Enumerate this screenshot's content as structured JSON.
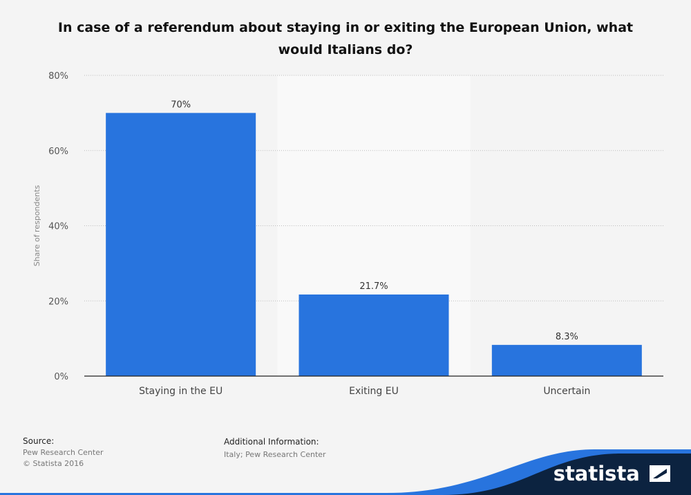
{
  "chart_data": {
    "type": "bar",
    "title": "In case of a referendum about staying in or exiting the European Union, what would Italians do?",
    "categories": [
      "Staying in the EU",
      "Exiting EU",
      "Uncertain"
    ],
    "values": [
      70,
      21.7,
      8.3
    ],
    "value_labels": [
      "70%",
      "21.7%",
      "8.3%"
    ],
    "xlabel": "",
    "ylabel": "Share of respondents",
    "ylim": [
      0,
      80
    ],
    "yticks": [
      0,
      20,
      40,
      60,
      80
    ],
    "ytick_labels": [
      "0%",
      "20%",
      "40%",
      "60%",
      "80%"
    ],
    "grid": true,
    "bar_color": "#2874de"
  },
  "footer": {
    "source_label": "Source:",
    "source_lines": [
      "Pew Research Center",
      "© Statista 2016"
    ],
    "additional_label": "Additional Information:",
    "additional_text": "Italy; Pew Research Center"
  },
  "brand": {
    "name": "statista"
  },
  "colors": {
    "background": "#f4f4f4",
    "navy": "#0c2340",
    "accent_blue": "#2874de"
  }
}
